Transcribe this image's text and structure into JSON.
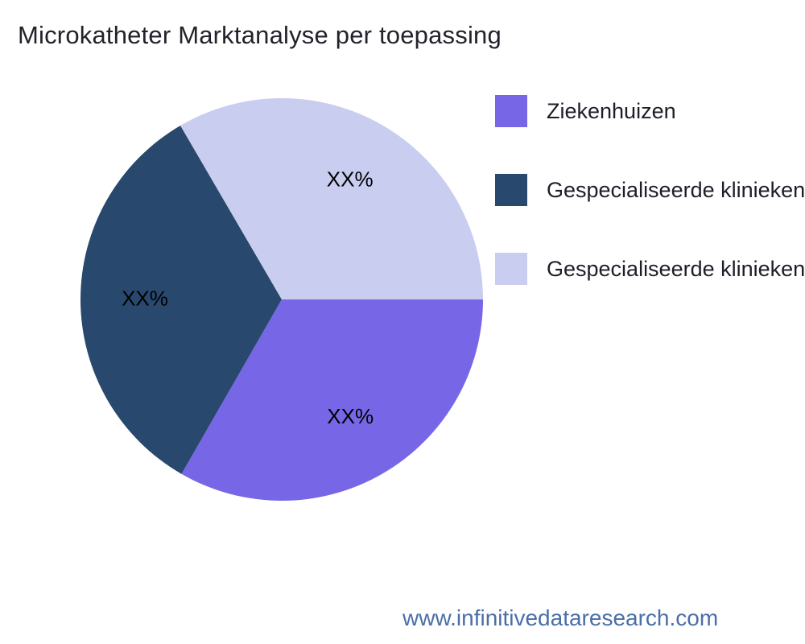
{
  "title": "Microkatheter Marktanalyse per toepassing",
  "footer": {
    "url": "www.infinitivedataresearch.com",
    "color": "#4a6fa8"
  },
  "chart_data": {
    "type": "pie",
    "title": "Microkatheter Marktanalyse per toepassing",
    "legend_position": "right",
    "direction": "clockwise",
    "start_angle_clockwise_from_top_deg": 90,
    "slice_label_color": "#000000",
    "slices": [
      {
        "label": "Ziekenhuizen",
        "value": 33.3,
        "display_value": "XX%",
        "color": "#7767e6"
      },
      {
        "label": "Gespecialiseerde klinieken",
        "value": 33.3,
        "display_value": "XX%",
        "color": "#28486d"
      },
      {
        "label": "Gespecialiseerde klinieken",
        "value": 33.4,
        "display_value": "XX%",
        "color": "#c9cdf0"
      }
    ]
  }
}
